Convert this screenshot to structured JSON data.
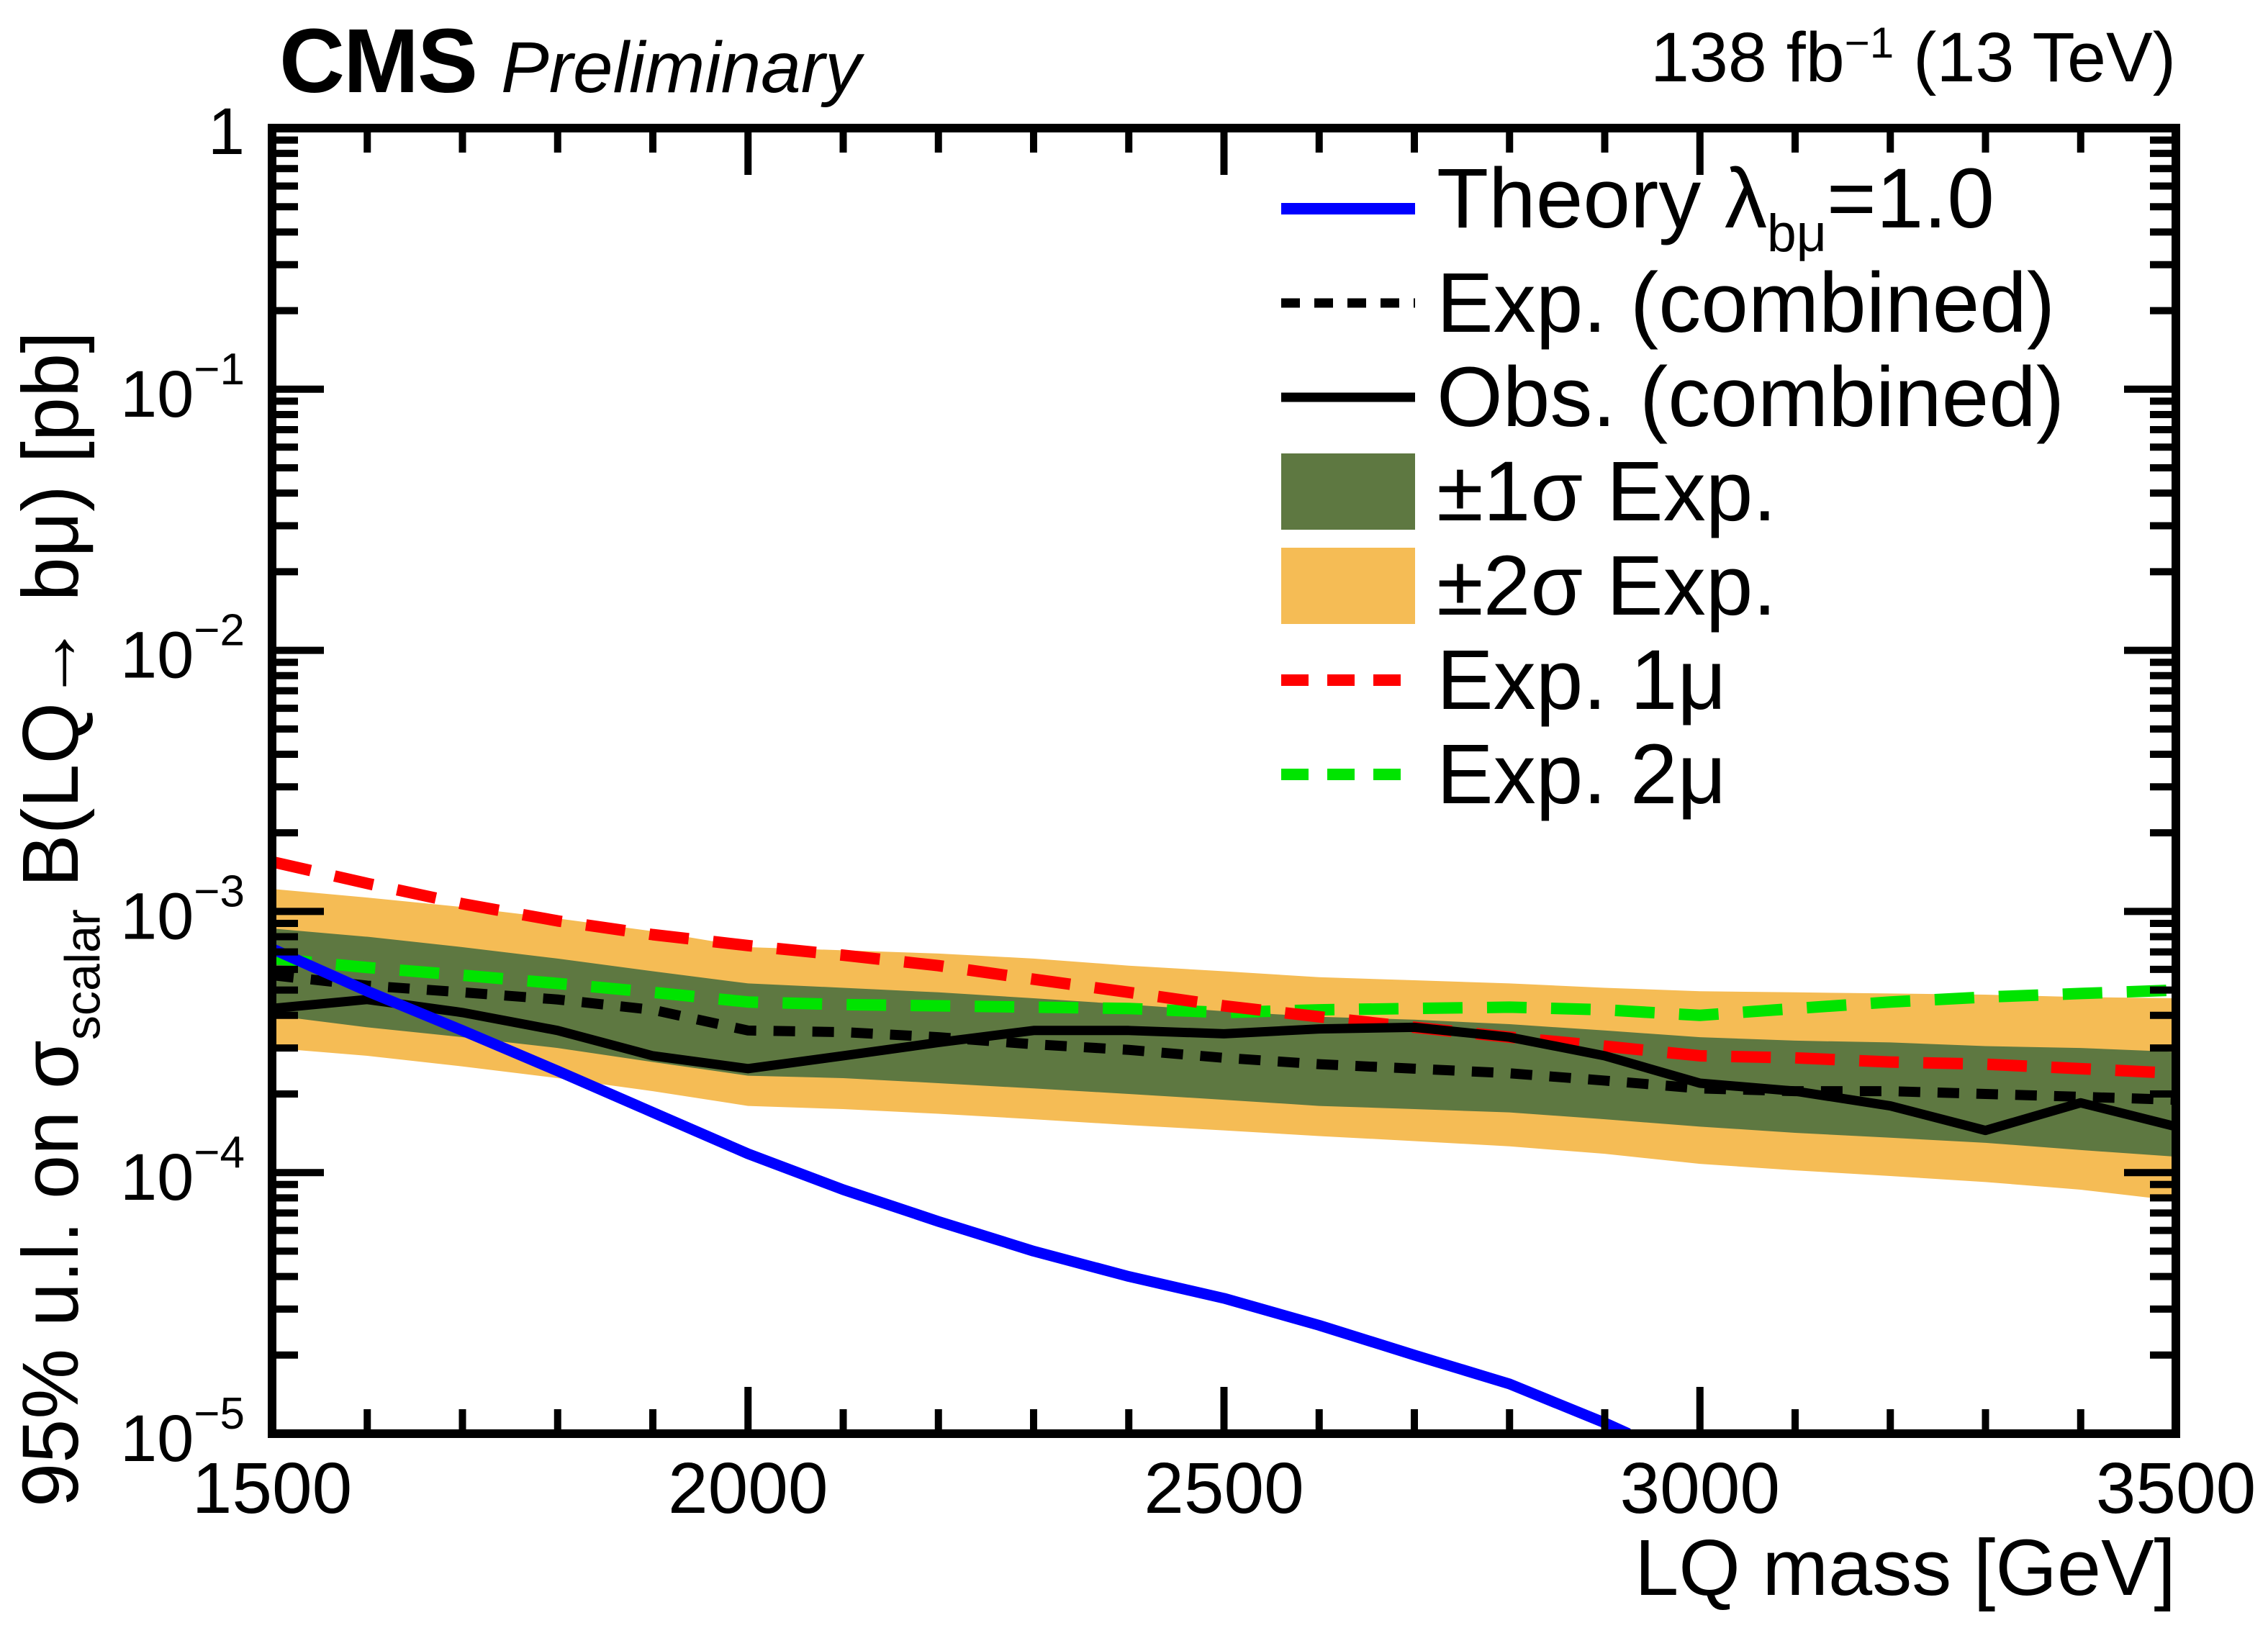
{
  "header": {
    "cms": "CMS",
    "preliminary": "Preliminary",
    "lumi_pre": "138 fb",
    "lumi_sup": "−1",
    "lumi_post": " (13 TeV)"
  },
  "axes": {
    "x_title": "LQ mass [GeV]",
    "y_title_pre": "95% u.l. on σ",
    "y_title_sub": "scalar",
    "y_title_post": " B(LQ→ bμ) [pb]"
  },
  "colors": {
    "theory_blue": "#0000ff",
    "obs_black": "#000000",
    "band_1sigma_green": "#5e7841",
    "band_2sigma_orange": "#f5bc55",
    "exp_1mu_red": "#ff0000",
    "exp_2mu_green": "#00e400"
  },
  "legend": {
    "items": [
      {
        "key": "theory",
        "sample": "line",
        "color": "#0000ff",
        "lw": 16,
        "dash": "",
        "pre": "Theory λ",
        "sub": "bμ",
        "post": "=1.0"
      },
      {
        "key": "exp-combined",
        "sample": "line",
        "color": "#000000",
        "lw": 13,
        "dash": "26 20",
        "pre": "Exp. (combined)",
        "sub": "",
        "post": ""
      },
      {
        "key": "obs-combined",
        "sample": "line",
        "color": "#000000",
        "lw": 13,
        "dash": "",
        "pre": "Obs. (combined)",
        "sub": "",
        "post": ""
      },
      {
        "key": "band-1sigma",
        "sample": "box",
        "color": "#5e7841",
        "lw": 0,
        "dash": "",
        "pre": "±1σ Exp.",
        "sub": "",
        "post": ""
      },
      {
        "key": "band-2sigma",
        "sample": "box",
        "color": "#f5bc55",
        "lw": 0,
        "dash": "",
        "pre": "±2σ Exp.",
        "sub": "",
        "post": ""
      },
      {
        "key": "exp-1mu",
        "sample": "line",
        "color": "#ff0000",
        "lw": 16,
        "dash": "38 26",
        "pre": "Exp. 1μ",
        "sub": "",
        "post": ""
      },
      {
        "key": "exp-2mu",
        "sample": "line",
        "color": "#00e400",
        "lw": 16,
        "dash": "38 26",
        "pre": "Exp. 2μ",
        "sub": "",
        "post": ""
      }
    ]
  },
  "chart_data": {
    "type": "line",
    "title": "CMS Preliminary, 138 fb−1 (13 TeV)",
    "xlabel": "LQ mass [GeV]",
    "ylabel": "95% u.l. on σ_scalar B(LQ→ bμ) [pb]",
    "xlim": [
      1500,
      3500
    ],
    "ylim": [
      1e-05,
      1
    ],
    "y_scale": "log",
    "grid": false,
    "legend_position": "top-right",
    "x_major_ticks": [
      1500,
      2000,
      2500,
      3000,
      3500
    ],
    "x_tick_labels": [
      "1500",
      "2000",
      "2500",
      "3000",
      "3500"
    ],
    "x_minor_step": 100,
    "y_tick_exponents": [
      0,
      -1,
      -2,
      -3,
      -4,
      -5
    ],
    "masses": [
      1500,
      1600,
      1700,
      1800,
      1900,
      2000,
      2100,
      2200,
      2300,
      2400,
      2500,
      2600,
      2700,
      2800,
      2900,
      3000,
      3100,
      3200,
      3300,
      3400,
      3500
    ],
    "bands": [
      {
        "key": "band-2sigma",
        "name": "±2σ Exp.",
        "color": "#f5bc55",
        "up": [
          0.00122,
          0.00113,
          0.00104,
          0.00094,
          0.00084,
          0.00073,
          0.00071,
          0.00069,
          0.00066,
          0.00062,
          0.00059,
          0.00056,
          0.000545,
          0.00053,
          0.00051,
          0.000495,
          0.00049,
          0.000485,
          0.00048,
          0.00047,
          0.000465
        ],
        "down": [
          0.0003,
          0.00028,
          0.000255,
          0.00023,
          0.000205,
          0.00018,
          0.000175,
          0.000168,
          0.00016,
          0.000152,
          0.000145,
          0.000138,
          0.000132,
          0.000126,
          0.000118,
          0.000108,
          0.000102,
          9.7e-05,
          9.2e-05,
          8.6e-05,
          7.8e-05
        ]
      },
      {
        "key": "band-1sigma",
        "name": "±1σ Exp.",
        "color": "#5e7841",
        "up": [
          0.00086,
          0.0008,
          0.00073,
          0.00066,
          0.00059,
          0.00053,
          0.00051,
          0.00049,
          0.000465,
          0.00044,
          0.000415,
          0.000395,
          0.000385,
          0.00037,
          0.00035,
          0.00033,
          0.00032,
          0.000315,
          0.000305,
          0.0003,
          0.00029
        ],
        "down": [
          0.0004,
          0.00036,
          0.00033,
          0.0003,
          0.000265,
          0.000235,
          0.00023,
          0.00022,
          0.00021,
          0.0002,
          0.00019,
          0.00018,
          0.000175,
          0.00017,
          0.00016,
          0.00015,
          0.000142,
          0.000136,
          0.00013,
          0.000122,
          0.000115
        ]
      }
    ],
    "series": [
      {
        "key": "exp-2mu",
        "name": "Exp. 2μ",
        "color": "#00e400",
        "style": "dashed",
        "width": 16,
        "dash": "55 34",
        "x": [
          1500,
          1600,
          1700,
          1800,
          1900,
          2000,
          2100,
          2200,
          2300,
          2400,
          2500,
          2600,
          2700,
          2800,
          2900,
          3000,
          3100,
          3200,
          3300,
          3400,
          3500
        ],
        "y": [
          0.00066,
          0.00061,
          0.00057,
          0.00053,
          0.00049,
          0.00045,
          0.00044,
          0.000435,
          0.00043,
          0.000425,
          0.00041,
          0.00042,
          0.000425,
          0.00043,
          0.00042,
          0.0004,
          0.000425,
          0.00045,
          0.00047,
          0.000485,
          0.0005
        ]
      },
      {
        "key": "exp-1mu",
        "name": "Exp. 1μ",
        "color": "#ff0000",
        "style": "dashed",
        "width": 16,
        "dash": "55 34",
        "x": [
          1500,
          1600,
          1700,
          1800,
          1900,
          2000,
          2100,
          2200,
          2300,
          2400,
          2500,
          2600,
          2700,
          2800,
          2900,
          3000,
          3100,
          3200,
          3300,
          3400,
          3500
        ],
        "y": [
          0.00155,
          0.00128,
          0.00107,
          0.00092,
          0.000815,
          0.00074,
          0.00068,
          0.00062,
          0.00055,
          0.00049,
          0.000435,
          0.000395,
          0.00036,
          0.00033,
          0.000305,
          0.00028,
          0.000275,
          0.000265,
          0.00026,
          0.00025,
          0.00024
        ]
      },
      {
        "key": "exp-combined",
        "name": "Exp. (combined)",
        "color": "#000000",
        "style": "dashed",
        "width": 14,
        "dash": "30 24",
        "x": [
          1500,
          1600,
          1700,
          1800,
          1900,
          2000,
          2100,
          2200,
          2300,
          2400,
          2500,
          2600,
          2700,
          2800,
          2900,
          3000,
          3100,
          3200,
          3300,
          3400,
          3500
        ],
        "y": [
          0.00057,
          0.00052,
          0.00049,
          0.00046,
          0.00042,
          0.00035,
          0.000345,
          0.00033,
          0.00031,
          0.000295,
          0.000275,
          0.00026,
          0.00025,
          0.00024,
          0.000225,
          0.00021,
          0.000205,
          0.000205,
          0.0002,
          0.000195,
          0.00019
        ]
      },
      {
        "key": "obs-combined",
        "name": "Obs. (combined)",
        "color": "#000000",
        "style": "solid",
        "width": 13,
        "dash": "",
        "x": [
          1500,
          1600,
          1700,
          1800,
          1900,
          2000,
          2100,
          2200,
          2300,
          2400,
          2500,
          2600,
          2700,
          2800,
          2900,
          3000,
          3100,
          3200,
          3300,
          3400,
          3500
        ],
        "y": [
          0.000425,
          0.00046,
          0.00041,
          0.00035,
          0.00028,
          0.00025,
          0.00028,
          0.000315,
          0.00035,
          0.00035,
          0.00034,
          0.000355,
          0.00036,
          0.00033,
          0.00028,
          0.00022,
          0.000205,
          0.00018,
          0.000145,
          0.000185,
          0.00015
        ]
      },
      {
        "key": "theory",
        "name": "Theory λbμ=1.0",
        "color": "#0000ff",
        "style": "solid",
        "width": 15,
        "dash": "",
        "x": [
          1500,
          1600,
          1700,
          1800,
          1900,
          2000,
          2100,
          2200,
          2300,
          2400,
          2500,
          2600,
          2700,
          2800,
          2900,
          2925
        ],
        "y": [
          0.00072,
          0.000495,
          0.00035,
          0.000245,
          0.00017,
          0.000118,
          8.6e-05,
          6.5e-05,
          5e-05,
          4e-05,
          3.3e-05,
          2.6e-05,
          2e-05,
          1.55e-05,
          1.1e-05,
          1e-05
        ]
      }
    ]
  }
}
